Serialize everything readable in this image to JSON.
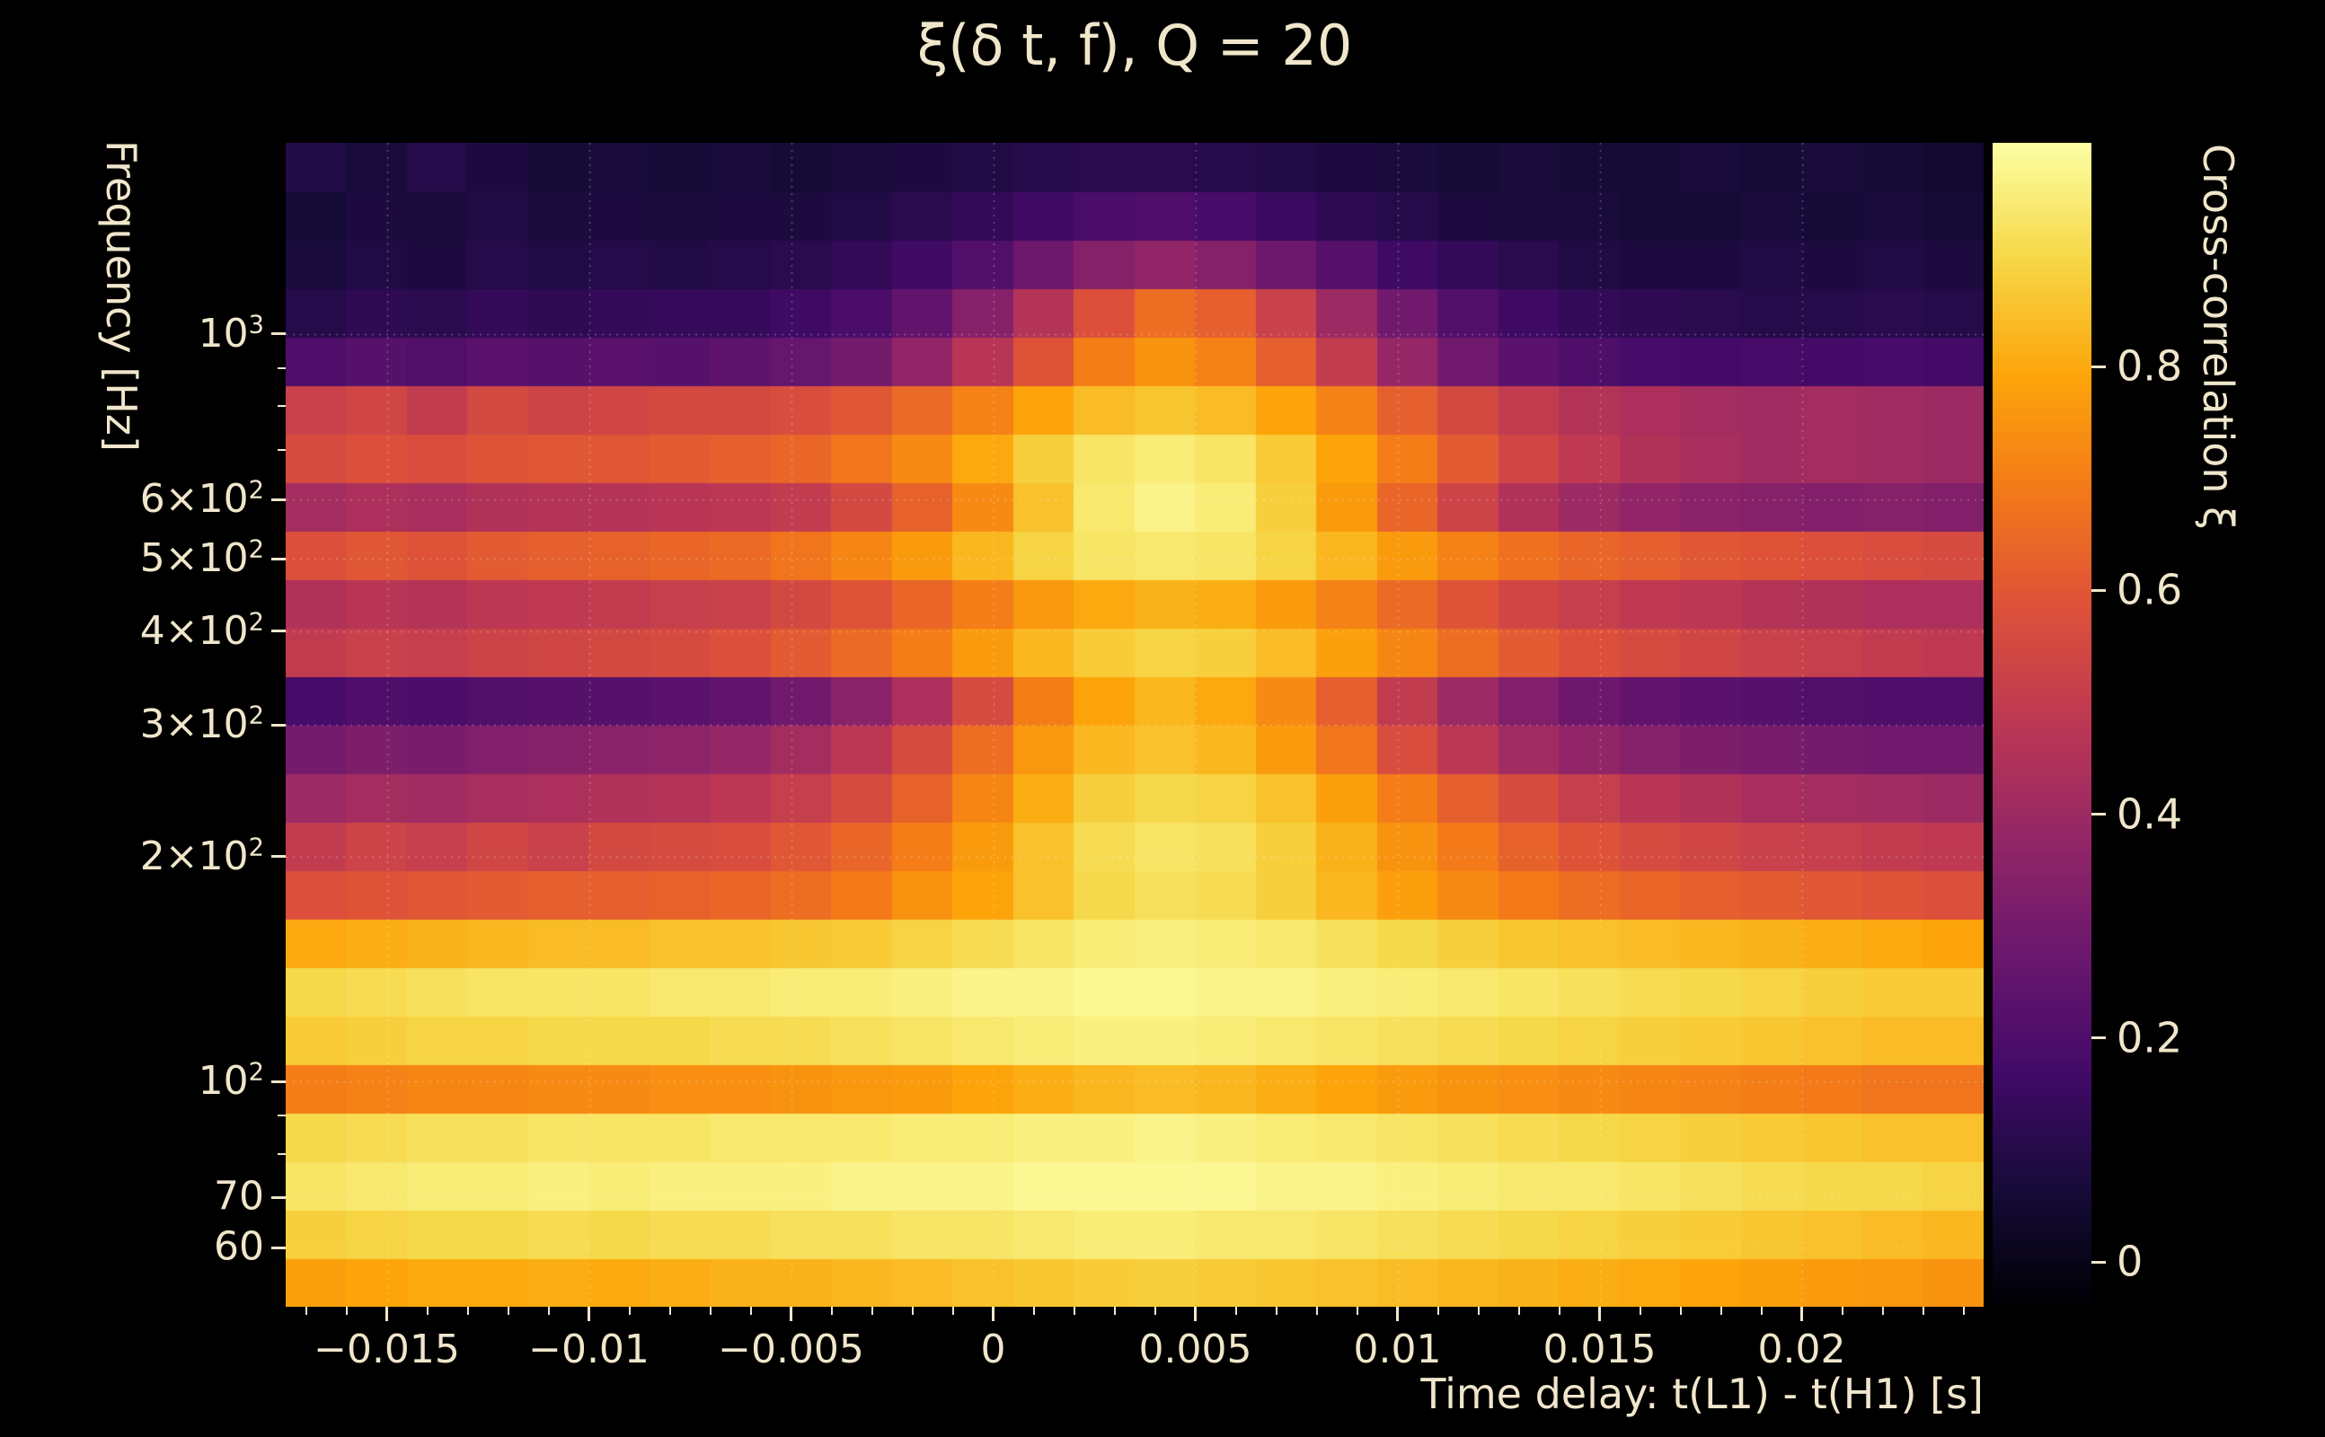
{
  "figure": {
    "background_color": "#000000",
    "text_color": "#f0e6cb"
  },
  "chart_data": {
    "type": "heatmap",
    "title": "ξ(δ t, f), Q = 20",
    "xlabel": "Time delay: t(L1) - t(H1) [s]",
    "ylabel": "Frequency [Hz]",
    "colorbar_label": "Cross-correlation ξ",
    "x_scale": "linear",
    "y_scale": "log",
    "x_range": [
      -0.0175,
      0.0245
    ],
    "y_range_hz": [
      50,
      1800
    ],
    "color_range": [
      -0.04,
      1.0
    ],
    "grid_on": true,
    "grid_color": "#ffffff",
    "grid_alpha": 0.3,
    "x_major_ticks": [
      {
        "value": -0.015,
        "label": "−0.015"
      },
      {
        "value": -0.01,
        "label": "−0.01"
      },
      {
        "value": -0.005,
        "label": "−0.005"
      },
      {
        "value": 0,
        "label": "0"
      },
      {
        "value": 0.005,
        "label": "0.005"
      },
      {
        "value": 0.01,
        "label": "0.01"
      },
      {
        "value": 0.015,
        "label": "0.015"
      },
      {
        "value": 0.02,
        "label": "0.02"
      }
    ],
    "x_minor_step": 0.001,
    "y_ticks": [
      {
        "value": 1000,
        "base": "10",
        "sup": "3"
      },
      {
        "value": 600,
        "base": "6×10",
        "sup": "2"
      },
      {
        "value": 500,
        "base": "5×10",
        "sup": "2"
      },
      {
        "value": 400,
        "base": "4×10",
        "sup": "2"
      },
      {
        "value": 300,
        "base": "3×10",
        "sup": "2"
      },
      {
        "value": 200,
        "base": "2×10",
        "sup": "2"
      },
      {
        "value": 100,
        "base": "10",
        "sup": "2"
      },
      {
        "value": 70,
        "base": "70",
        "sup": ""
      },
      {
        "value": 60,
        "base": "60",
        "sup": ""
      }
    ],
    "y_minor_ticks": [
      80,
      90,
      700,
      800,
      900
    ],
    "colorbar_ticks": [
      {
        "value": 0,
        "label": "0"
      },
      {
        "value": 0.2,
        "label": "0.2"
      },
      {
        "value": 0.4,
        "label": "0.4"
      },
      {
        "value": 0.6,
        "label": "0.6"
      },
      {
        "value": 0.8,
        "label": "0.8"
      }
    ],
    "colormap": "inferno",
    "colormap_stops": [
      [
        0.0,
        "#000004"
      ],
      [
        0.1,
        "#160b39"
      ],
      [
        0.2,
        "#420a68"
      ],
      [
        0.3,
        "#6a176e"
      ],
      [
        0.4,
        "#932667"
      ],
      [
        0.5,
        "#bc3754"
      ],
      [
        0.6,
        "#dd513a"
      ],
      [
        0.7,
        "#f37819"
      ],
      [
        0.8,
        "#fca50a"
      ],
      [
        0.9,
        "#f6d746"
      ],
      [
        1.0,
        "#fcffa4"
      ]
    ],
    "time_bins": {
      "start": -0.0175,
      "step": 0.0015,
      "count": 28
    },
    "freq_bins": {
      "min_hz": 50,
      "max_hz": 1800,
      "count": 24,
      "spacing": "log"
    },
    "grid_row_order": "lowest-frequency-first",
    "grid": [
      [
        0.78,
        0.79,
        0.8,
        0.8,
        0.81,
        0.8,
        0.81,
        0.82,
        0.82,
        0.83,
        0.84,
        0.85,
        0.86,
        0.87,
        0.88,
        0.87,
        0.86,
        0.85,
        0.84,
        0.83,
        0.82,
        0.81,
        0.8,
        0.79,
        0.78,
        0.77,
        0.76,
        0.75
      ],
      [
        0.88,
        0.89,
        0.9,
        0.9,
        0.91,
        0.9,
        0.91,
        0.91,
        0.92,
        0.92,
        0.93,
        0.93,
        0.94,
        0.95,
        0.95,
        0.94,
        0.94,
        0.93,
        0.92,
        0.91,
        0.9,
        0.89,
        0.88,
        0.87,
        0.86,
        0.85,
        0.84,
        0.83
      ],
      [
        0.93,
        0.94,
        0.95,
        0.95,
        0.96,
        0.95,
        0.96,
        0.96,
        0.96,
        0.97,
        0.97,
        0.97,
        0.98,
        0.98,
        0.98,
        0.98,
        0.97,
        0.97,
        0.96,
        0.95,
        0.94,
        0.94,
        0.93,
        0.92,
        0.91,
        0.9,
        0.9,
        0.89
      ],
      [
        0.9,
        0.91,
        0.92,
        0.92,
        0.93,
        0.93,
        0.93,
        0.94,
        0.94,
        0.94,
        0.95,
        0.95,
        0.96,
        0.96,
        0.97,
        0.96,
        0.95,
        0.94,
        0.93,
        0.92,
        0.91,
        0.9,
        0.89,
        0.88,
        0.87,
        0.86,
        0.85,
        0.85
      ],
      [
        0.7,
        0.71,
        0.72,
        0.72,
        0.73,
        0.73,
        0.74,
        0.74,
        0.75,
        0.76,
        0.77,
        0.79,
        0.81,
        0.83,
        0.84,
        0.83,
        0.81,
        0.79,
        0.77,
        0.75,
        0.74,
        0.73,
        0.72,
        0.71,
        0.7,
        0.69,
        0.68,
        0.68
      ],
      [
        0.87,
        0.88,
        0.89,
        0.89,
        0.9,
        0.9,
        0.9,
        0.91,
        0.91,
        0.92,
        0.93,
        0.94,
        0.95,
        0.96,
        0.96,
        0.95,
        0.94,
        0.93,
        0.92,
        0.91,
        0.9,
        0.89,
        0.88,
        0.87,
        0.86,
        0.85,
        0.84,
        0.84
      ],
      [
        0.9,
        0.91,
        0.92,
        0.93,
        0.93,
        0.93,
        0.94,
        0.94,
        0.95,
        0.95,
        0.96,
        0.97,
        0.97,
        0.98,
        0.98,
        0.97,
        0.97,
        0.96,
        0.95,
        0.94,
        0.93,
        0.92,
        0.91,
        0.9,
        0.89,
        0.88,
        0.87,
        0.87
      ],
      [
        0.8,
        0.81,
        0.82,
        0.83,
        0.84,
        0.84,
        0.85,
        0.85,
        0.86,
        0.87,
        0.89,
        0.91,
        0.93,
        0.95,
        0.96,
        0.95,
        0.94,
        0.92,
        0.9,
        0.88,
        0.86,
        0.85,
        0.84,
        0.83,
        0.82,
        0.81,
        0.8,
        0.79
      ],
      [
        0.58,
        0.59,
        0.6,
        0.61,
        0.62,
        0.62,
        0.63,
        0.64,
        0.66,
        0.69,
        0.75,
        0.79,
        0.85,
        0.9,
        0.92,
        0.91,
        0.88,
        0.83,
        0.78,
        0.73,
        0.69,
        0.66,
        0.64,
        0.62,
        0.61,
        0.6,
        0.59,
        0.58
      ],
      [
        0.5,
        0.53,
        0.51,
        0.54,
        0.52,
        0.55,
        0.56,
        0.57,
        0.6,
        0.64,
        0.7,
        0.77,
        0.85,
        0.91,
        0.93,
        0.92,
        0.88,
        0.82,
        0.75,
        0.69,
        0.63,
        0.59,
        0.56,
        0.54,
        0.52,
        0.51,
        0.5,
        0.49
      ],
      [
        0.4,
        0.42,
        0.41,
        0.43,
        0.44,
        0.45,
        0.46,
        0.48,
        0.51,
        0.56,
        0.63,
        0.72,
        0.81,
        0.88,
        0.9,
        0.89,
        0.85,
        0.78,
        0.7,
        0.62,
        0.56,
        0.51,
        0.47,
        0.45,
        0.43,
        0.42,
        0.41,
        0.4
      ],
      [
        0.3,
        0.32,
        0.31,
        0.33,
        0.34,
        0.35,
        0.36,
        0.38,
        0.42,
        0.48,
        0.56,
        0.66,
        0.76,
        0.83,
        0.85,
        0.83,
        0.77,
        0.68,
        0.57,
        0.48,
        0.41,
        0.37,
        0.34,
        0.32,
        0.31,
        0.3,
        0.29,
        0.29
      ],
      [
        0.18,
        0.2,
        0.19,
        0.21,
        0.22,
        0.22,
        0.23,
        0.25,
        0.29,
        0.35,
        0.44,
        0.56,
        0.7,
        0.79,
        0.83,
        0.8,
        0.73,
        0.62,
        0.5,
        0.4,
        0.33,
        0.28,
        0.25,
        0.23,
        0.22,
        0.21,
        0.2,
        0.2
      ],
      [
        0.5,
        0.52,
        0.51,
        0.53,
        0.54,
        0.55,
        0.56,
        0.58,
        0.61,
        0.65,
        0.7,
        0.77,
        0.83,
        0.87,
        0.89,
        0.88,
        0.84,
        0.78,
        0.72,
        0.66,
        0.61,
        0.58,
        0.56,
        0.54,
        0.52,
        0.51,
        0.5,
        0.49
      ],
      [
        0.45,
        0.47,
        0.46,
        0.48,
        0.49,
        0.5,
        0.51,
        0.52,
        0.55,
        0.59,
        0.64,
        0.7,
        0.76,
        0.8,
        0.82,
        0.81,
        0.77,
        0.71,
        0.65,
        0.59,
        0.54,
        0.51,
        0.49,
        0.48,
        0.46,
        0.45,
        0.44,
        0.44
      ],
      [
        0.58,
        0.6,
        0.59,
        0.61,
        0.62,
        0.63,
        0.64,
        0.65,
        0.68,
        0.72,
        0.77,
        0.83,
        0.89,
        0.93,
        0.94,
        0.93,
        0.89,
        0.83,
        0.77,
        0.71,
        0.67,
        0.64,
        0.62,
        0.6,
        0.59,
        0.58,
        0.57,
        0.56
      ],
      [
        0.42,
        0.44,
        0.43,
        0.45,
        0.46,
        0.46,
        0.47,
        0.48,
        0.5,
        0.55,
        0.63,
        0.73,
        0.85,
        0.94,
        0.97,
        0.95,
        0.88,
        0.77,
        0.64,
        0.53,
        0.45,
        0.4,
        0.37,
        0.35,
        0.34,
        0.33,
        0.34,
        0.33
      ],
      [
        0.56,
        0.58,
        0.57,
        0.59,
        0.6,
        0.6,
        0.61,
        0.62,
        0.64,
        0.68,
        0.73,
        0.8,
        0.88,
        0.93,
        0.95,
        0.93,
        0.87,
        0.79,
        0.7,
        0.61,
        0.54,
        0.49,
        0.45,
        0.43,
        0.41,
        0.42,
        0.41,
        0.4
      ],
      [
        0.52,
        0.54,
        0.5,
        0.55,
        0.53,
        0.54,
        0.55,
        0.55,
        0.57,
        0.6,
        0.65,
        0.71,
        0.79,
        0.84,
        0.86,
        0.84,
        0.79,
        0.71,
        0.62,
        0.55,
        0.5,
        0.46,
        0.44,
        0.42,
        0.41,
        0.42,
        0.41,
        0.4
      ],
      [
        0.2,
        0.22,
        0.21,
        0.23,
        0.22,
        0.23,
        0.22,
        0.24,
        0.26,
        0.3,
        0.37,
        0.47,
        0.59,
        0.7,
        0.75,
        0.71,
        0.62,
        0.5,
        0.38,
        0.29,
        0.23,
        0.2,
        0.18,
        0.17,
        0.18,
        0.17,
        0.18,
        0.17
      ],
      [
        0.1,
        0.12,
        0.11,
        0.13,
        0.12,
        0.13,
        0.14,
        0.14,
        0.16,
        0.19,
        0.25,
        0.34,
        0.46,
        0.58,
        0.66,
        0.62,
        0.52,
        0.4,
        0.29,
        0.21,
        0.16,
        0.13,
        0.12,
        0.11,
        0.1,
        0.1,
        0.11,
        0.1
      ],
      [
        0.07,
        0.09,
        0.08,
        0.1,
        0.09,
        0.1,
        0.09,
        0.1,
        0.11,
        0.13,
        0.16,
        0.21,
        0.28,
        0.34,
        0.37,
        0.34,
        0.28,
        0.22,
        0.16,
        0.13,
        0.11,
        0.09,
        0.08,
        0.08,
        0.09,
        0.08,
        0.09,
        0.08
      ],
      [
        0.06,
        0.08,
        0.07,
        0.09,
        0.07,
        0.08,
        0.07,
        0.08,
        0.08,
        0.09,
        0.11,
        0.13,
        0.16,
        0.19,
        0.2,
        0.18,
        0.15,
        0.12,
        0.1,
        0.08,
        0.07,
        0.07,
        0.06,
        0.06,
        0.07,
        0.06,
        0.07,
        0.06
      ],
      [
        0.09,
        0.07,
        0.1,
        0.08,
        0.06,
        0.07,
        0.06,
        0.07,
        0.06,
        0.07,
        0.08,
        0.09,
        0.1,
        0.11,
        0.11,
        0.1,
        0.09,
        0.08,
        0.07,
        0.06,
        0.07,
        0.06,
        0.06,
        0.07,
        0.06,
        0.07,
        0.06,
        0.05
      ]
    ]
  }
}
